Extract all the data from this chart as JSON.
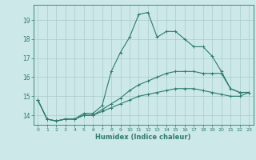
{
  "title": "",
  "xlabel": "Humidex (Indice chaleur)",
  "ylabel": "",
  "background_color": "#cce8e8",
  "grid_color": "#aacccc",
  "line_color": "#2e7b6e",
  "xlim": [
    -0.5,
    23.5
  ],
  "ylim": [
    13.5,
    19.8
  ],
  "yticks": [
    14,
    15,
    16,
    17,
    18,
    19
  ],
  "xticks": [
    0,
    1,
    2,
    3,
    4,
    5,
    6,
    7,
    8,
    9,
    10,
    11,
    12,
    13,
    14,
    15,
    16,
    17,
    18,
    19,
    20,
    21,
    22,
    23
  ],
  "series": [
    [
      14.8,
      13.8,
      13.7,
      13.8,
      13.8,
      14.1,
      14.1,
      14.5,
      16.3,
      17.3,
      18.1,
      19.3,
      19.4,
      18.1,
      18.4,
      18.4,
      18.0,
      17.6,
      17.6,
      17.1,
      16.3,
      15.4,
      15.2,
      15.2
    ],
    [
      14.8,
      13.8,
      13.7,
      13.8,
      13.8,
      14.0,
      14.0,
      14.3,
      14.6,
      14.9,
      15.3,
      15.6,
      15.8,
      16.0,
      16.2,
      16.3,
      16.3,
      16.3,
      16.2,
      16.2,
      16.2,
      15.4,
      15.2,
      15.2
    ],
    [
      14.8,
      13.8,
      13.7,
      13.8,
      13.8,
      14.0,
      14.0,
      14.2,
      14.4,
      14.6,
      14.8,
      15.0,
      15.1,
      15.2,
      15.3,
      15.4,
      15.4,
      15.4,
      15.3,
      15.2,
      15.1,
      15.0,
      15.0,
      15.2
    ]
  ]
}
